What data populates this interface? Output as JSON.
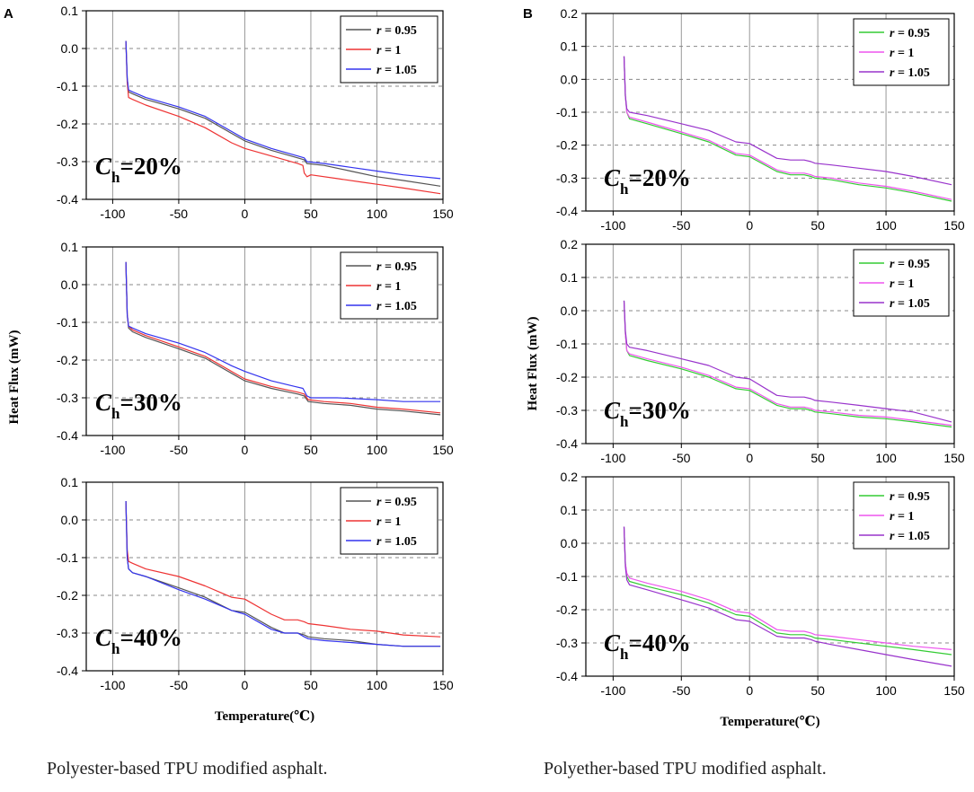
{
  "figure": {
    "captions": [
      "Polyester-based TPU modified asphalt.",
      "Polyether-based TPU modified asphalt."
    ],
    "xlabel": "Temperature(℃)",
    "ylabel": "Heat Flux (mW)"
  },
  "chart_data": [
    {
      "type": "line",
      "panel": "A",
      "group": "Polyester-based TPU modified asphalt.",
      "annotation": {
        "main": "C",
        "sub": "h",
        "rest": "=20%"
      },
      "xlabel": "",
      "ylabel": "",
      "xlim": [
        -120,
        150
      ],
      "ylim": [
        -0.4,
        0.1
      ],
      "xticks": [
        -100,
        -50,
        0,
        50,
        100,
        150
      ],
      "yticks": [
        "0.1",
        "0.0",
        "-0.1",
        "-0.2",
        "-0.3",
        "-0.4"
      ],
      "series": [
        {
          "name": "0.95",
          "label_var": "r",
          "color": "#555555",
          "x": [
            -90,
            -89,
            -88,
            -85,
            -75,
            -50,
            -30,
            -10,
            0,
            20,
            40,
            45,
            47,
            60,
            80,
            100,
            120,
            148
          ],
          "y": [
            0.02,
            -0.08,
            -0.115,
            -0.12,
            -0.135,
            -0.16,
            -0.185,
            -0.225,
            -0.245,
            -0.27,
            -0.29,
            -0.295,
            -0.305,
            -0.31,
            -0.325,
            -0.34,
            -0.35,
            -0.365
          ]
        },
        {
          "name": "1",
          "label_var": "r",
          "color": "#ee3333",
          "x": [
            -90,
            -89,
            -88,
            -85,
            -75,
            -50,
            -30,
            -10,
            0,
            20,
            40,
            44,
            45,
            47,
            50,
            70,
            90,
            100,
            120,
            148
          ],
          "y": [
            0.02,
            -0.09,
            -0.13,
            -0.135,
            -0.15,
            -0.18,
            -0.21,
            -0.25,
            -0.265,
            -0.285,
            -0.305,
            -0.31,
            -0.33,
            -0.34,
            -0.335,
            -0.345,
            -0.355,
            -0.36,
            -0.37,
            -0.385
          ]
        },
        {
          "name": "1.05",
          "label_var": "r",
          "color": "#3333ee",
          "x": [
            -90,
            -89,
            -88,
            -85,
            -75,
            -50,
            -30,
            -10,
            0,
            20,
            40,
            45,
            47,
            60,
            80,
            100,
            120,
            148
          ],
          "y": [
            0.02,
            -0.08,
            -0.11,
            -0.115,
            -0.13,
            -0.155,
            -0.18,
            -0.22,
            -0.24,
            -0.265,
            -0.285,
            -0.29,
            -0.3,
            -0.305,
            -0.315,
            -0.325,
            -0.335,
            -0.345
          ]
        }
      ]
    },
    {
      "type": "line",
      "panel": "",
      "group": "Polyester-based TPU modified asphalt.",
      "annotation": {
        "main": "C",
        "sub": "h",
        "rest": "=30%"
      },
      "xlabel": "",
      "ylabel": "",
      "xlim": [
        -120,
        150
      ],
      "ylim": [
        -0.4,
        0.1
      ],
      "xticks": [
        -100,
        -50,
        0,
        50,
        100,
        150
      ],
      "yticks": [
        "0.1",
        "0.0",
        "-0.1",
        "-0.2",
        "-0.3",
        "-0.4"
      ],
      "series": [
        {
          "name": "0.95",
          "label_var": "r",
          "color": "#555555",
          "x": [
            -90,
            -89,
            -88,
            -85,
            -75,
            -50,
            -30,
            -10,
            0,
            20,
            40,
            45,
            48,
            60,
            80,
            100,
            120,
            148
          ],
          "y": [
            0.06,
            -0.08,
            -0.115,
            -0.125,
            -0.14,
            -0.17,
            -0.195,
            -0.235,
            -0.255,
            -0.275,
            -0.29,
            -0.295,
            -0.31,
            -0.315,
            -0.32,
            -0.33,
            -0.335,
            -0.345
          ]
        },
        {
          "name": "1",
          "label_var": "r",
          "color": "#ee3333",
          "x": [
            -90,
            -89,
            -88,
            -85,
            -75,
            -50,
            -30,
            -10,
            0,
            20,
            40,
            45,
            48,
            60,
            80,
            100,
            120,
            148
          ],
          "y": [
            0.06,
            -0.08,
            -0.11,
            -0.12,
            -0.135,
            -0.165,
            -0.19,
            -0.23,
            -0.25,
            -0.27,
            -0.285,
            -0.29,
            -0.305,
            -0.31,
            -0.315,
            -0.325,
            -0.33,
            -0.34
          ]
        },
        {
          "name": "1.05",
          "label_var": "r",
          "color": "#3333ee",
          "x": [
            -90,
            -89,
            -88,
            -85,
            -75,
            -50,
            -30,
            -10,
            0,
            20,
            38,
            44,
            47,
            50,
            70,
            100,
            120,
            148
          ],
          "y": [
            0.06,
            -0.08,
            -0.11,
            -0.115,
            -0.13,
            -0.155,
            -0.18,
            -0.215,
            -0.23,
            -0.255,
            -0.27,
            -0.275,
            -0.295,
            -0.3,
            -0.3,
            -0.305,
            -0.31,
            -0.31
          ]
        }
      ]
    },
    {
      "type": "line",
      "panel": "",
      "group": "Polyester-based TPU modified asphalt.",
      "annotation": {
        "main": "C",
        "sub": "h",
        "rest": "=40%"
      },
      "xlabel": "Temperature(℃)",
      "ylabel": "",
      "xlim": [
        -120,
        150
      ],
      "ylim": [
        -0.4,
        0.1
      ],
      "xticks": [
        -100,
        -50,
        0,
        50,
        100,
        150
      ],
      "yticks": [
        "0.1",
        "0.0",
        "-0.1",
        "-0.2",
        "-0.3",
        "-0.4"
      ],
      "series": [
        {
          "name": "0.95",
          "label_var": "r",
          "color": "#555555",
          "x": [
            -90,
            -89,
            -88,
            -85,
            -75,
            -50,
            -30,
            -10,
            0,
            20,
            30,
            40,
            45,
            48,
            60,
            80,
            100,
            120,
            148
          ],
          "y": [
            0.05,
            -0.1,
            -0.13,
            -0.14,
            -0.15,
            -0.18,
            -0.205,
            -0.24,
            -0.245,
            -0.285,
            -0.3,
            -0.3,
            -0.305,
            -0.31,
            -0.315,
            -0.32,
            -0.33,
            -0.335,
            -0.335
          ]
        },
        {
          "name": "1",
          "label_var": "r",
          "color": "#ee3333",
          "x": [
            -90,
            -89,
            -88,
            -85,
            -75,
            -50,
            -30,
            -10,
            0,
            20,
            30,
            40,
            45,
            48,
            60,
            80,
            100,
            120,
            148
          ],
          "y": [
            0.05,
            -0.08,
            -0.11,
            -0.115,
            -0.13,
            -0.15,
            -0.175,
            -0.205,
            -0.21,
            -0.25,
            -0.265,
            -0.265,
            -0.27,
            -0.275,
            -0.28,
            -0.29,
            -0.295,
            -0.305,
            -0.31
          ]
        },
        {
          "name": "1.05",
          "label_var": "r",
          "color": "#3333ee",
          "x": [
            -90,
            -89,
            -88,
            -85,
            -75,
            -50,
            -30,
            -10,
            0,
            20,
            30,
            40,
            45,
            48,
            60,
            80,
            100,
            120,
            148
          ],
          "y": [
            0.05,
            -0.1,
            -0.13,
            -0.14,
            -0.15,
            -0.185,
            -0.21,
            -0.24,
            -0.25,
            -0.29,
            -0.3,
            -0.3,
            -0.31,
            -0.315,
            -0.32,
            -0.325,
            -0.33,
            -0.335,
            -0.335
          ]
        }
      ]
    },
    {
      "type": "line",
      "panel": "B",
      "group": "Polyether-based TPU modified asphalt.",
      "annotation": {
        "main": "C",
        "sub": "h",
        "rest": "=20%"
      },
      "xlabel": "",
      "ylabel": "",
      "xlim": [
        -120,
        150
      ],
      "ylim": [
        -0.4,
        0.2
      ],
      "xticks": [
        -100,
        -50,
        0,
        50,
        100,
        150
      ],
      "yticks": [
        "0.2",
        "0.1",
        "0.0",
        "-0.1",
        "-0.2",
        "-0.3",
        "-0.4"
      ],
      "series": [
        {
          "name": "0.95",
          "label_var": "r",
          "color": "#33cc33",
          "x": [
            -92,
            -91,
            -90,
            -88,
            -75,
            -50,
            -30,
            -10,
            0,
            20,
            30,
            40,
            45,
            48,
            60,
            80,
            100,
            120,
            148
          ],
          "y": [
            0.07,
            -0.05,
            -0.1,
            -0.12,
            -0.135,
            -0.165,
            -0.19,
            -0.23,
            -0.235,
            -0.28,
            -0.29,
            -0.29,
            -0.295,
            -0.3,
            -0.305,
            -0.32,
            -0.33,
            -0.345,
            -0.37
          ]
        },
        {
          "name": "1",
          "label_var": "r",
          "color": "#ee55ee",
          "x": [
            -92,
            -91,
            -90,
            -88,
            -75,
            -50,
            -30,
            -10,
            0,
            20,
            30,
            40,
            45,
            48,
            60,
            80,
            100,
            120,
            148
          ],
          "y": [
            0.07,
            -0.05,
            -0.1,
            -0.115,
            -0.13,
            -0.16,
            -0.185,
            -0.225,
            -0.23,
            -0.275,
            -0.285,
            -0.285,
            -0.29,
            -0.295,
            -0.3,
            -0.315,
            -0.325,
            -0.34,
            -0.365
          ]
        },
        {
          "name": "1.05",
          "label_var": "r",
          "color": "#9933cc",
          "x": [
            -92,
            -91,
            -90,
            -88,
            -75,
            -50,
            -30,
            -10,
            0,
            20,
            30,
            40,
            45,
            48,
            60,
            80,
            100,
            120,
            148
          ],
          "y": [
            0.07,
            -0.05,
            -0.09,
            -0.1,
            -0.11,
            -0.135,
            -0.155,
            -0.19,
            -0.195,
            -0.24,
            -0.245,
            -0.245,
            -0.25,
            -0.255,
            -0.26,
            -0.27,
            -0.28,
            -0.295,
            -0.32
          ]
        }
      ]
    },
    {
      "type": "line",
      "panel": "",
      "group": "Polyether-based TPU modified asphalt.",
      "annotation": {
        "main": "C",
        "sub": "h",
        "rest": "=30%"
      },
      "xlabel": "",
      "ylabel": "",
      "xlim": [
        -120,
        150
      ],
      "ylim": [
        -0.4,
        0.2
      ],
      "xticks": [
        -100,
        -50,
        0,
        50,
        100,
        150
      ],
      "yticks": [
        "0.2",
        "0.1",
        "0.0",
        "-0.1",
        "-0.2",
        "-0.3",
        "-0.4"
      ],
      "series": [
        {
          "name": "0.95",
          "label_var": "r",
          "color": "#33cc33",
          "x": [
            -92,
            -91,
            -90,
            -88,
            -75,
            -50,
            -30,
            -10,
            0,
            20,
            30,
            40,
            45,
            48,
            60,
            80,
            100,
            120,
            148
          ],
          "y": [
            0.03,
            -0.07,
            -0.12,
            -0.135,
            -0.15,
            -0.175,
            -0.2,
            -0.235,
            -0.24,
            -0.285,
            -0.295,
            -0.295,
            -0.3,
            -0.305,
            -0.31,
            -0.32,
            -0.325,
            -0.335,
            -0.35
          ]
        },
        {
          "name": "1",
          "label_var": "r",
          "color": "#ee55ee",
          "x": [
            -92,
            -91,
            -90,
            -88,
            -75,
            -50,
            -30,
            -10,
            0,
            20,
            30,
            40,
            45,
            48,
            60,
            80,
            100,
            120,
            148
          ],
          "y": [
            0.03,
            -0.07,
            -0.12,
            -0.13,
            -0.145,
            -0.17,
            -0.195,
            -0.23,
            -0.235,
            -0.28,
            -0.29,
            -0.29,
            -0.295,
            -0.3,
            -0.305,
            -0.315,
            -0.32,
            -0.33,
            -0.345
          ]
        },
        {
          "name": "1.05",
          "label_var": "r",
          "color": "#9933cc",
          "x": [
            -92,
            -91,
            -90,
            -88,
            -75,
            -50,
            -30,
            -10,
            0,
            20,
            30,
            40,
            45,
            48,
            60,
            80,
            100,
            120,
            148
          ],
          "y": [
            0.03,
            -0.06,
            -0.1,
            -0.11,
            -0.12,
            -0.145,
            -0.165,
            -0.2,
            -0.205,
            -0.255,
            -0.26,
            -0.26,
            -0.265,
            -0.27,
            -0.275,
            -0.285,
            -0.295,
            -0.305,
            -0.335
          ]
        }
      ]
    },
    {
      "type": "line",
      "panel": "",
      "group": "Polyether-based TPU modified asphalt.",
      "annotation": {
        "main": "C",
        "sub": "h",
        "rest": "=40%"
      },
      "xlabel": "Temperature(℃)",
      "ylabel": "",
      "xlim": [
        -120,
        150
      ],
      "ylim": [
        -0.4,
        0.2
      ],
      "xticks": [
        -100,
        -50,
        0,
        50,
        100,
        150
      ],
      "yticks": [
        "0.2",
        "0.1",
        "0.0",
        "-0.1",
        "-0.2",
        "-0.3",
        "-0.4"
      ],
      "series": [
        {
          "name": "0.95",
          "label_var": "r",
          "color": "#33cc33",
          "x": [
            -92,
            -91,
            -90,
            -88,
            -75,
            -50,
            -30,
            -10,
            0,
            20,
            30,
            40,
            45,
            48,
            60,
            80,
            100,
            120,
            148
          ],
          "y": [
            0.05,
            -0.06,
            -0.1,
            -0.115,
            -0.13,
            -0.155,
            -0.18,
            -0.215,
            -0.22,
            -0.27,
            -0.275,
            -0.275,
            -0.28,
            -0.285,
            -0.29,
            -0.3,
            -0.31,
            -0.32,
            -0.335
          ]
        },
        {
          "name": "1",
          "label_var": "r",
          "color": "#ee55ee",
          "x": [
            -92,
            -91,
            -90,
            -88,
            -75,
            -50,
            -30,
            -10,
            0,
            20,
            30,
            40,
            45,
            48,
            60,
            80,
            100,
            120,
            148
          ],
          "y": [
            0.05,
            -0.06,
            -0.09,
            -0.105,
            -0.12,
            -0.145,
            -0.17,
            -0.205,
            -0.21,
            -0.26,
            -0.265,
            -0.265,
            -0.27,
            -0.275,
            -0.28,
            -0.29,
            -0.3,
            -0.31,
            -0.32
          ]
        },
        {
          "name": "1.05",
          "label_var": "r",
          "color": "#9933cc",
          "x": [
            -92,
            -91,
            -90,
            -88,
            -75,
            -50,
            -30,
            -10,
            0,
            20,
            30,
            40,
            45,
            48,
            60,
            80,
            100,
            120,
            148
          ],
          "y": [
            0.05,
            -0.07,
            -0.11,
            -0.125,
            -0.14,
            -0.17,
            -0.195,
            -0.23,
            -0.235,
            -0.28,
            -0.285,
            -0.285,
            -0.29,
            -0.295,
            -0.305,
            -0.32,
            -0.335,
            -0.35,
            -0.37
          ]
        }
      ]
    }
  ]
}
